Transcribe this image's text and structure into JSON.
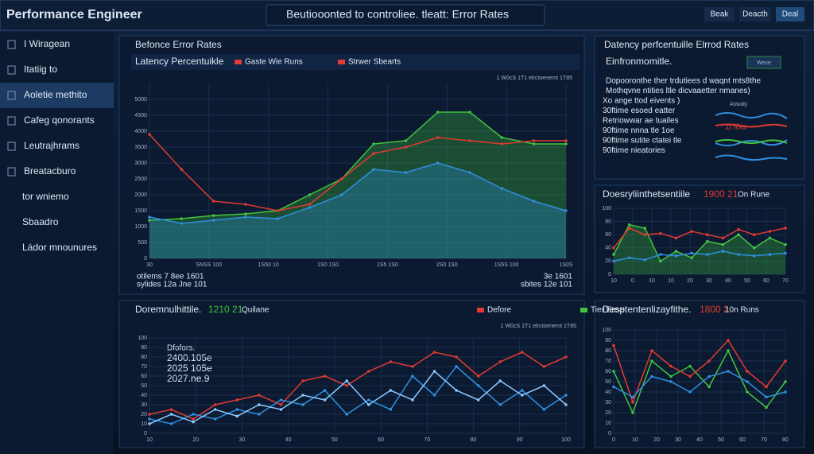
{
  "header": {
    "title": "Performance Engineer",
    "center": "Beutiooonted to controliee. tleatt: Error Rates",
    "buttons": [
      "Beak",
      "Deacth",
      "Deal"
    ]
  },
  "sidebar": [
    "I Wiragean",
    "Itatiig to",
    "Aoletie methito",
    "Cafeg qonorants",
    "Leutrajhrams",
    "Breatacburo",
    "tor wniemo",
    "Sbaadro",
    "Ládor mnounures"
  ],
  "main_panel": {
    "title": "Befonce Error Rates",
    "subtitle": "Latency Percentuikle",
    "legend": [
      {
        "label": "Gaste Wie Runs",
        "color": "#e53935"
      },
      {
        "label": "Strwer Sbearts",
        "color": "#e53935"
      }
    ],
    "note": "1 W0cS 1T1 elrctoenernt 1T85",
    "footer_left": [
      "otilems  7 8ee 1601",
      "sylides  12a Jne  101"
    ],
    "footer_right": [
      "3e 1601",
      "sbites 12e 101"
    ],
    "chart": {
      "type": "line",
      "ylim": [
        0,
        5500
      ],
      "yticks": [
        0,
        500,
        1000,
        1500,
        2000,
        2500,
        3000,
        3500,
        4000,
        4500,
        5000
      ],
      "x_labels": [
        "30",
        "SNSS 100",
        "1S50 10",
        "1S0 1S0",
        "1S5 1S0",
        "2S0 1S0",
        "1S5S 100",
        "1S0S"
      ],
      "series": [
        {
          "color": "#43c23f",
          "area": true,
          "values": [
            1200,
            1250,
            1350,
            1400,
            1500,
            2000,
            2500,
            3600,
            3700,
            4600,
            4600,
            3800,
            3600,
            3600
          ]
        },
        {
          "color": "#2f8fe0",
          "area": true,
          "values": [
            1300,
            1100,
            1200,
            1300,
            1250,
            1600,
            2000,
            2800,
            2700,
            3000,
            2700,
            2200,
            1800,
            1500
          ]
        },
        {
          "color": "#e03a32",
          "values": [
            3900,
            2800,
            1800,
            1700,
            1500,
            1700,
            2500,
            3300,
            3500,
            3800,
            3700,
            3600,
            3700,
            3700
          ]
        }
      ]
    }
  },
  "info_panel": {
    "title": "Datency perfcentuille Elrrod Rates",
    "subtitle": "Einfronmomitle.",
    "button": "Wexe",
    "lines": [
      "Dopooronthe ther trdutiees d waqnt mts8the",
      "Mothqvne ntities ltle dicvaaetter nmanes)",
      "Xo ange ttod eivents )",
      "30ftime esoed eatter",
      "Retriowwar ae tuailes",
      "90ftime nnna tle 1oe",
      "90ftime sutite ctatei tle",
      "90ftime nieatories"
    ],
    "badge": "Aswaly",
    "badge2": "1t l0ia"
  },
  "mid_right_panel": {
    "title": "Doesryliinthetsentiile",
    "stat": "1900 21",
    "stat_suffix": "On Rune",
    "chart": {
      "type": "line",
      "ylim": [
        0,
        100
      ],
      "yticks": [
        0,
        20,
        40,
        60,
        80,
        100
      ],
      "x_labels": [
        "10",
        "0",
        "10",
        "10",
        "20",
        "30",
        "40",
        "50",
        "60",
        "70"
      ],
      "series": [
        {
          "color": "#43c23f",
          "area": true,
          "values": [
            30,
            75,
            70,
            20,
            35,
            25,
            50,
            45,
            60,
            40,
            55,
            45
          ]
        },
        {
          "color": "#e03a32",
          "values": [
            40,
            70,
            60,
            62,
            55,
            65,
            60,
            55,
            68,
            60,
            65,
            70
          ]
        },
        {
          "color": "#2f8fe0",
          "values": [
            20,
            25,
            22,
            30,
            28,
            32,
            30,
            35,
            30,
            28,
            30,
            32
          ]
        }
      ]
    }
  },
  "bottom_panel": {
    "title": "Doremnulhittile.",
    "stat": "1210 21",
    "stat_suffix": "Quilane",
    "legend": [
      {
        "label": "Defore",
        "color": "#e53935"
      },
      {
        "label": "Tier Ense",
        "color": "#43c23f"
      }
    ],
    "note": "1 W0cS 1T1 elrctoenernt 1T85",
    "overlay": [
      "Dfofors.",
      "2400.105e",
      "2025 105e",
      "2027.ne.9"
    ],
    "chart": {
      "type": "line",
      "ylim": [
        0,
        100
      ],
      "yticks": [
        0,
        10,
        20,
        30,
        40,
        50,
        60,
        70,
        80,
        90,
        100
      ],
      "x_labels": [
        "10",
        "20",
        "30",
        "40",
        "50",
        "60",
        "70",
        "80",
        "90",
        "100"
      ],
      "series": [
        {
          "color": "#e03a32",
          "values": [
            20,
            25,
            15,
            30,
            35,
            40,
            30,
            55,
            60,
            50,
            65,
            75,
            70,
            85,
            80,
            60,
            75,
            85,
            70,
            80
          ]
        },
        {
          "color": "#2f8fe0",
          "values": [
            15,
            10,
            20,
            15,
            25,
            20,
            35,
            30,
            45,
            20,
            35,
            25,
            60,
            40,
            70,
            50,
            30,
            45,
            25,
            40
          ]
        },
        {
          "color": "#8cc8ff",
          "values": [
            10,
            20,
            12,
            25,
            18,
            30,
            25,
            40,
            35,
            55,
            30,
            45,
            35,
            65,
            45,
            35,
            55,
            40,
            50,
            30
          ]
        }
      ]
    }
  },
  "bottom_right_panel": {
    "title": "Desptentenlizayfithe.",
    "stat": "1800 2",
    "stat_suffix": "10n Runs",
    "chart": {
      "type": "line",
      "ylim": [
        0,
        100
      ],
      "yticks": [
        0,
        10,
        20,
        30,
        40,
        50,
        60,
        70,
        80,
        90,
        100
      ],
      "x_labels": [
        "0",
        "10",
        "20",
        "30",
        "40",
        "50",
        "60",
        "70",
        "80"
      ],
      "series": [
        {
          "color": "#43c23f",
          "values": [
            60,
            20,
            70,
            55,
            65,
            45,
            80,
            40,
            25,
            50
          ]
        },
        {
          "color": "#e03a32",
          "values": [
            85,
            30,
            80,
            65,
            55,
            70,
            90,
            60,
            45,
            70
          ]
        },
        {
          "color": "#2f8fe0",
          "values": [
            45,
            35,
            55,
            50,
            40,
            55,
            60,
            50,
            35,
            40
          ]
        }
      ]
    }
  }
}
